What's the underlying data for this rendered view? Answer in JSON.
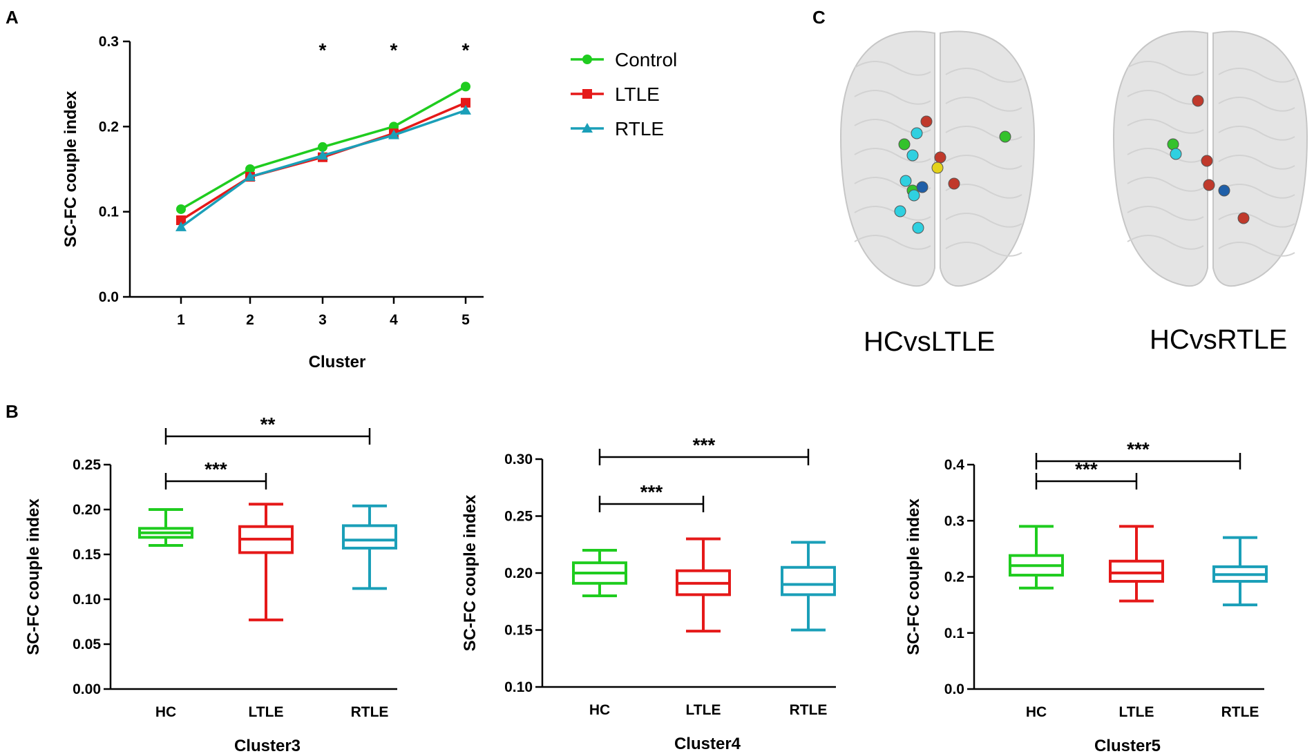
{
  "panels": {
    "a": "A",
    "b": "B",
    "c": "C"
  },
  "colors": {
    "control": "#1fcc1f",
    "ltle": "#e51919",
    "rtle": "#1a9fb8"
  },
  "chart_data": [
    {
      "type": "line",
      "panel": "A",
      "title": "",
      "xlabel": "Cluster",
      "ylabel": "SC-FC couple index",
      "categories": [
        "1",
        "2",
        "3",
        "4",
        "5"
      ],
      "ylim": [
        0.0,
        0.3
      ],
      "yticks": [
        "0.0",
        "0.1",
        "0.2",
        "0.3"
      ],
      "series": [
        {
          "name": "Control",
          "key": "control",
          "marker": "circle",
          "values": [
            0.103,
            0.15,
            0.176,
            0.2,
            0.247
          ]
        },
        {
          "name": "LTLE",
          "key": "ltle",
          "marker": "square",
          "values": [
            0.09,
            0.141,
            0.164,
            0.192,
            0.228
          ]
        },
        {
          "name": "RTLE",
          "key": "rtle",
          "marker": "triangle",
          "values": [
            0.082,
            0.141,
            0.166,
            0.19,
            0.219
          ]
        }
      ],
      "annotations": [
        {
          "category": "3",
          "text": "*"
        },
        {
          "category": "4",
          "text": "*"
        },
        {
          "category": "5",
          "text": "*"
        }
      ],
      "legend_position": "right"
    },
    {
      "type": "box",
      "panel": "B",
      "xlabel": "Cluster3",
      "ylabel": "SC-FC couple index",
      "categories": [
        "HC",
        "LTLE",
        "RTLE"
      ],
      "ylim": [
        0.0,
        0.25
      ],
      "yticks": [
        "0.00",
        "0.05",
        "0.10",
        "0.15",
        "0.20",
        "0.25"
      ],
      "boxes": [
        {
          "group": "HC",
          "min": 0.16,
          "q1": 0.169,
          "median": 0.174,
          "q3": 0.179,
          "max": 0.2
        },
        {
          "group": "LTLE",
          "min": 0.077,
          "q1": 0.152,
          "median": 0.167,
          "q3": 0.181,
          "max": 0.206
        },
        {
          "group": "RTLE",
          "min": 0.112,
          "q1": 0.157,
          "median": 0.166,
          "q3": 0.182,
          "max": 0.204
        }
      ],
      "brackets": [
        {
          "from": "HC",
          "to": "LTLE",
          "text": "***"
        },
        {
          "from": "HC",
          "to": "RTLE",
          "text": "**"
        }
      ]
    },
    {
      "type": "box",
      "panel": "B",
      "xlabel": "Cluster4",
      "ylabel": "SC-FC couple index",
      "categories": [
        "HC",
        "LTLE",
        "RTLE"
      ],
      "ylim": [
        0.1,
        0.3
      ],
      "yticks": [
        "0.10",
        "0.15",
        "0.20",
        "0.25",
        "0.30"
      ],
      "boxes": [
        {
          "group": "HC",
          "min": 0.18,
          "q1": 0.191,
          "median": 0.2,
          "q3": 0.209,
          "max": 0.22
        },
        {
          "group": "LTLE",
          "min": 0.149,
          "q1": 0.181,
          "median": 0.191,
          "q3": 0.202,
          "max": 0.23
        },
        {
          "group": "RTLE",
          "min": 0.15,
          "q1": 0.181,
          "median": 0.19,
          "q3": 0.205,
          "max": 0.227
        }
      ],
      "brackets": [
        {
          "from": "HC",
          "to": "LTLE",
          "text": "***"
        },
        {
          "from": "HC",
          "to": "RTLE",
          "text": "***"
        }
      ]
    },
    {
      "type": "box",
      "panel": "B",
      "xlabel": "Cluster5",
      "ylabel": "SC-FC couple index",
      "categories": [
        "HC",
        "LTLE",
        "RTLE"
      ],
      "ylim": [
        0.0,
        0.4
      ],
      "yticks": [
        "0.0",
        "0.1",
        "0.2",
        "0.3",
        "0.4"
      ],
      "boxes": [
        {
          "group": "HC",
          "min": 0.18,
          "q1": 0.203,
          "median": 0.22,
          "q3": 0.238,
          "max": 0.29
        },
        {
          "group": "LTLE",
          "min": 0.157,
          "q1": 0.192,
          "median": 0.207,
          "q3": 0.228,
          "max": 0.29
        },
        {
          "group": "RTLE",
          "min": 0.15,
          "q1": 0.192,
          "median": 0.204,
          "q3": 0.218,
          "max": 0.27
        }
      ],
      "brackets": [
        {
          "from": "HC",
          "to": "LTLE",
          "text": "***"
        },
        {
          "from": "HC",
          "to": "RTLE",
          "text": "***"
        }
      ]
    }
  ],
  "brains": [
    {
      "label": "HCvsLTLE",
      "nodes": [
        {
          "color": "#c0392b"
        },
        {
          "color": "#2fd0e0"
        },
        {
          "color": "#34c22c"
        },
        {
          "color": "#2fd0e0"
        },
        {
          "color": "#c0392b"
        },
        {
          "color": "#e4d21a"
        },
        {
          "color": "#2fd0e0"
        },
        {
          "color": "#34c22c"
        },
        {
          "color": "#1f5fa8"
        },
        {
          "color": "#2fd0e0"
        },
        {
          "color": "#c0392b"
        },
        {
          "color": "#2fd0e0"
        },
        {
          "color": "#2fd0e0"
        },
        {
          "color": "#34c22c"
        }
      ]
    },
    {
      "label": "HCvsRTLE",
      "nodes": [
        {
          "color": "#c0392b"
        },
        {
          "color": "#34c22c"
        },
        {
          "color": "#2fd0e0"
        },
        {
          "color": "#c0392b"
        },
        {
          "color": "#c0392b"
        },
        {
          "color": "#1f5fa8"
        },
        {
          "color": "#c0392b"
        }
      ]
    }
  ]
}
